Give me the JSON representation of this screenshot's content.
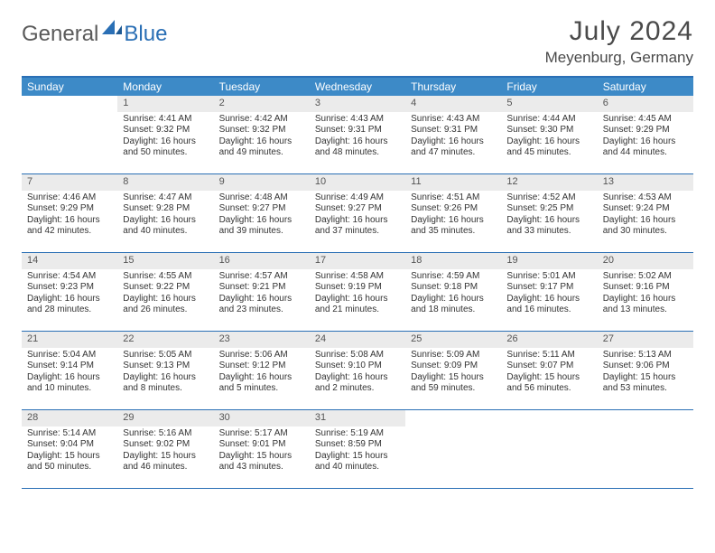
{
  "brand": {
    "part1": "General",
    "part2": "Blue"
  },
  "title": "July 2024",
  "location": "Meyenburg, Germany",
  "colors": {
    "header_bar": "#3d8ac7",
    "rule": "#2a6fb5",
    "daynum_bg": "#ebebeb",
    "text": "#333333",
    "title_text": "#4a4a4a",
    "logo_gray": "#5a5a5a",
    "logo_blue": "#2a6fb5",
    "background": "#ffffff"
  },
  "typography": {
    "title_fontsize": 30,
    "location_fontsize": 17,
    "dow_fontsize": 12,
    "daynum_fontsize": 11,
    "body_fontsize": 10
  },
  "layout": {
    "columns": 7,
    "rows": 5,
    "cell_min_height": 86
  },
  "days_of_week": [
    "Sunday",
    "Monday",
    "Tuesday",
    "Wednesday",
    "Thursday",
    "Friday",
    "Saturday"
  ],
  "weeks": [
    [
      {
        "n": "",
        "empty": true
      },
      {
        "n": "1",
        "sunrise": "Sunrise: 4:41 AM",
        "sunset": "Sunset: 9:32 PM",
        "daylight": "Daylight: 16 hours and 50 minutes."
      },
      {
        "n": "2",
        "sunrise": "Sunrise: 4:42 AM",
        "sunset": "Sunset: 9:32 PM",
        "daylight": "Daylight: 16 hours and 49 minutes."
      },
      {
        "n": "3",
        "sunrise": "Sunrise: 4:43 AM",
        "sunset": "Sunset: 9:31 PM",
        "daylight": "Daylight: 16 hours and 48 minutes."
      },
      {
        "n": "4",
        "sunrise": "Sunrise: 4:43 AM",
        "sunset": "Sunset: 9:31 PM",
        "daylight": "Daylight: 16 hours and 47 minutes."
      },
      {
        "n": "5",
        "sunrise": "Sunrise: 4:44 AM",
        "sunset": "Sunset: 9:30 PM",
        "daylight": "Daylight: 16 hours and 45 minutes."
      },
      {
        "n": "6",
        "sunrise": "Sunrise: 4:45 AM",
        "sunset": "Sunset: 9:29 PM",
        "daylight": "Daylight: 16 hours and 44 minutes."
      }
    ],
    [
      {
        "n": "7",
        "sunrise": "Sunrise: 4:46 AM",
        "sunset": "Sunset: 9:29 PM",
        "daylight": "Daylight: 16 hours and 42 minutes."
      },
      {
        "n": "8",
        "sunrise": "Sunrise: 4:47 AM",
        "sunset": "Sunset: 9:28 PM",
        "daylight": "Daylight: 16 hours and 40 minutes."
      },
      {
        "n": "9",
        "sunrise": "Sunrise: 4:48 AM",
        "sunset": "Sunset: 9:27 PM",
        "daylight": "Daylight: 16 hours and 39 minutes."
      },
      {
        "n": "10",
        "sunrise": "Sunrise: 4:49 AM",
        "sunset": "Sunset: 9:27 PM",
        "daylight": "Daylight: 16 hours and 37 minutes."
      },
      {
        "n": "11",
        "sunrise": "Sunrise: 4:51 AM",
        "sunset": "Sunset: 9:26 PM",
        "daylight": "Daylight: 16 hours and 35 minutes."
      },
      {
        "n": "12",
        "sunrise": "Sunrise: 4:52 AM",
        "sunset": "Sunset: 9:25 PM",
        "daylight": "Daylight: 16 hours and 33 minutes."
      },
      {
        "n": "13",
        "sunrise": "Sunrise: 4:53 AM",
        "sunset": "Sunset: 9:24 PM",
        "daylight": "Daylight: 16 hours and 30 minutes."
      }
    ],
    [
      {
        "n": "14",
        "sunrise": "Sunrise: 4:54 AM",
        "sunset": "Sunset: 9:23 PM",
        "daylight": "Daylight: 16 hours and 28 minutes."
      },
      {
        "n": "15",
        "sunrise": "Sunrise: 4:55 AM",
        "sunset": "Sunset: 9:22 PM",
        "daylight": "Daylight: 16 hours and 26 minutes."
      },
      {
        "n": "16",
        "sunrise": "Sunrise: 4:57 AM",
        "sunset": "Sunset: 9:21 PM",
        "daylight": "Daylight: 16 hours and 23 minutes."
      },
      {
        "n": "17",
        "sunrise": "Sunrise: 4:58 AM",
        "sunset": "Sunset: 9:19 PM",
        "daylight": "Daylight: 16 hours and 21 minutes."
      },
      {
        "n": "18",
        "sunrise": "Sunrise: 4:59 AM",
        "sunset": "Sunset: 9:18 PM",
        "daylight": "Daylight: 16 hours and 18 minutes."
      },
      {
        "n": "19",
        "sunrise": "Sunrise: 5:01 AM",
        "sunset": "Sunset: 9:17 PM",
        "daylight": "Daylight: 16 hours and 16 minutes."
      },
      {
        "n": "20",
        "sunrise": "Sunrise: 5:02 AM",
        "sunset": "Sunset: 9:16 PM",
        "daylight": "Daylight: 16 hours and 13 minutes."
      }
    ],
    [
      {
        "n": "21",
        "sunrise": "Sunrise: 5:04 AM",
        "sunset": "Sunset: 9:14 PM",
        "daylight": "Daylight: 16 hours and 10 minutes."
      },
      {
        "n": "22",
        "sunrise": "Sunrise: 5:05 AM",
        "sunset": "Sunset: 9:13 PM",
        "daylight": "Daylight: 16 hours and 8 minutes."
      },
      {
        "n": "23",
        "sunrise": "Sunrise: 5:06 AM",
        "sunset": "Sunset: 9:12 PM",
        "daylight": "Daylight: 16 hours and 5 minutes."
      },
      {
        "n": "24",
        "sunrise": "Sunrise: 5:08 AM",
        "sunset": "Sunset: 9:10 PM",
        "daylight": "Daylight: 16 hours and 2 minutes."
      },
      {
        "n": "25",
        "sunrise": "Sunrise: 5:09 AM",
        "sunset": "Sunset: 9:09 PM",
        "daylight": "Daylight: 15 hours and 59 minutes."
      },
      {
        "n": "26",
        "sunrise": "Sunrise: 5:11 AM",
        "sunset": "Sunset: 9:07 PM",
        "daylight": "Daylight: 15 hours and 56 minutes."
      },
      {
        "n": "27",
        "sunrise": "Sunrise: 5:13 AM",
        "sunset": "Sunset: 9:06 PM",
        "daylight": "Daylight: 15 hours and 53 minutes."
      }
    ],
    [
      {
        "n": "28",
        "sunrise": "Sunrise: 5:14 AM",
        "sunset": "Sunset: 9:04 PM",
        "daylight": "Daylight: 15 hours and 50 minutes."
      },
      {
        "n": "29",
        "sunrise": "Sunrise: 5:16 AM",
        "sunset": "Sunset: 9:02 PM",
        "daylight": "Daylight: 15 hours and 46 minutes."
      },
      {
        "n": "30",
        "sunrise": "Sunrise: 5:17 AM",
        "sunset": "Sunset: 9:01 PM",
        "daylight": "Daylight: 15 hours and 43 minutes."
      },
      {
        "n": "31",
        "sunrise": "Sunrise: 5:19 AM",
        "sunset": "Sunset: 8:59 PM",
        "daylight": "Daylight: 15 hours and 40 minutes."
      },
      {
        "n": "",
        "empty": true
      },
      {
        "n": "",
        "empty": true
      },
      {
        "n": "",
        "empty": true
      }
    ]
  ]
}
